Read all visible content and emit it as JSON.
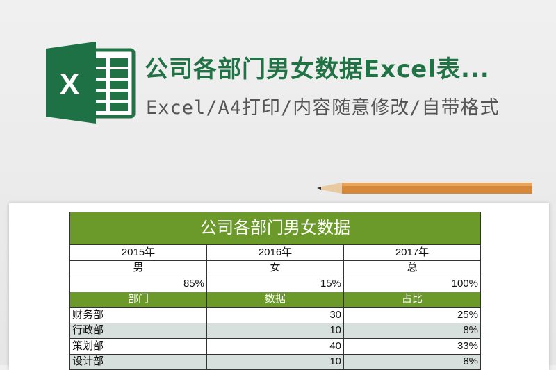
{
  "header": {
    "title": "公司各部门男女数据Excel表...",
    "subtitle": "Excel/A4打印/内容随意修改/自带格式",
    "logo_letter": "X"
  },
  "colors": {
    "brand": "#217346",
    "table_header": "#6b9a2a",
    "alt_row": "#d7e0dc"
  },
  "sheet": {
    "title": "公司各部门男女数据",
    "years": [
      "2015年",
      "2016年",
      "2017年"
    ],
    "genders": [
      "男",
      "女",
      "总"
    ],
    "percents": [
      "85%",
      "15%",
      "100%"
    ],
    "columns": [
      "部门",
      "数据",
      "占比"
    ],
    "rows": [
      [
        "财务部",
        "30",
        "25%"
      ],
      [
        "行政部",
        "10",
        "8%"
      ],
      [
        "策划部",
        "40",
        "33%"
      ],
      [
        "设计部",
        "10",
        "8%"
      ]
    ]
  }
}
